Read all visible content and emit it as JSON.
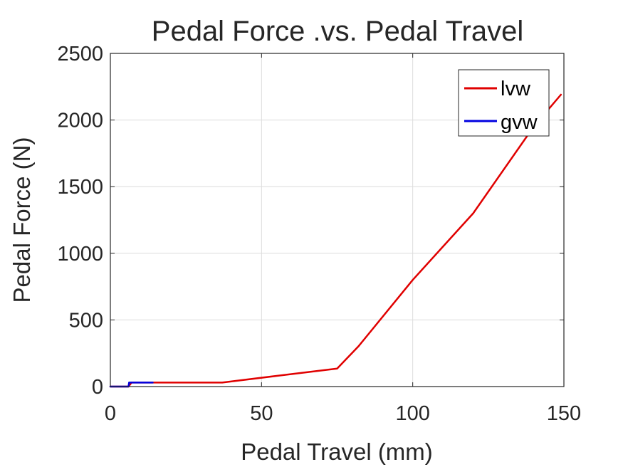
{
  "chart_data": {
    "type": "line",
    "title": "Pedal Force .vs. Pedal Travel",
    "xlabel": "Pedal Travel (mm)",
    "ylabel": "Pedal Force (N)",
    "xlim": [
      0,
      150
    ],
    "ylim": [
      0,
      2500
    ],
    "xticks": [
      0,
      50,
      100,
      150
    ],
    "yticks": [
      0,
      500,
      1000,
      1500,
      2000,
      2500
    ],
    "grid": true,
    "legend_position": "top-right",
    "series": [
      {
        "name": "lvw",
        "color": "#e00000",
        "x": [
          0,
          6,
          7,
          14,
          37,
          55,
          75,
          82,
          100,
          120,
          140,
          149
        ],
        "y": [
          0,
          0,
          30,
          30,
          30,
          80,
          135,
          300,
          800,
          1300,
          1950,
          2190
        ]
      },
      {
        "name": "gvw",
        "color": "#0000e0",
        "x": [
          0,
          6,
          6.2,
          14
        ],
        "y": [
          0,
          0,
          30,
          30
        ]
      }
    ]
  }
}
